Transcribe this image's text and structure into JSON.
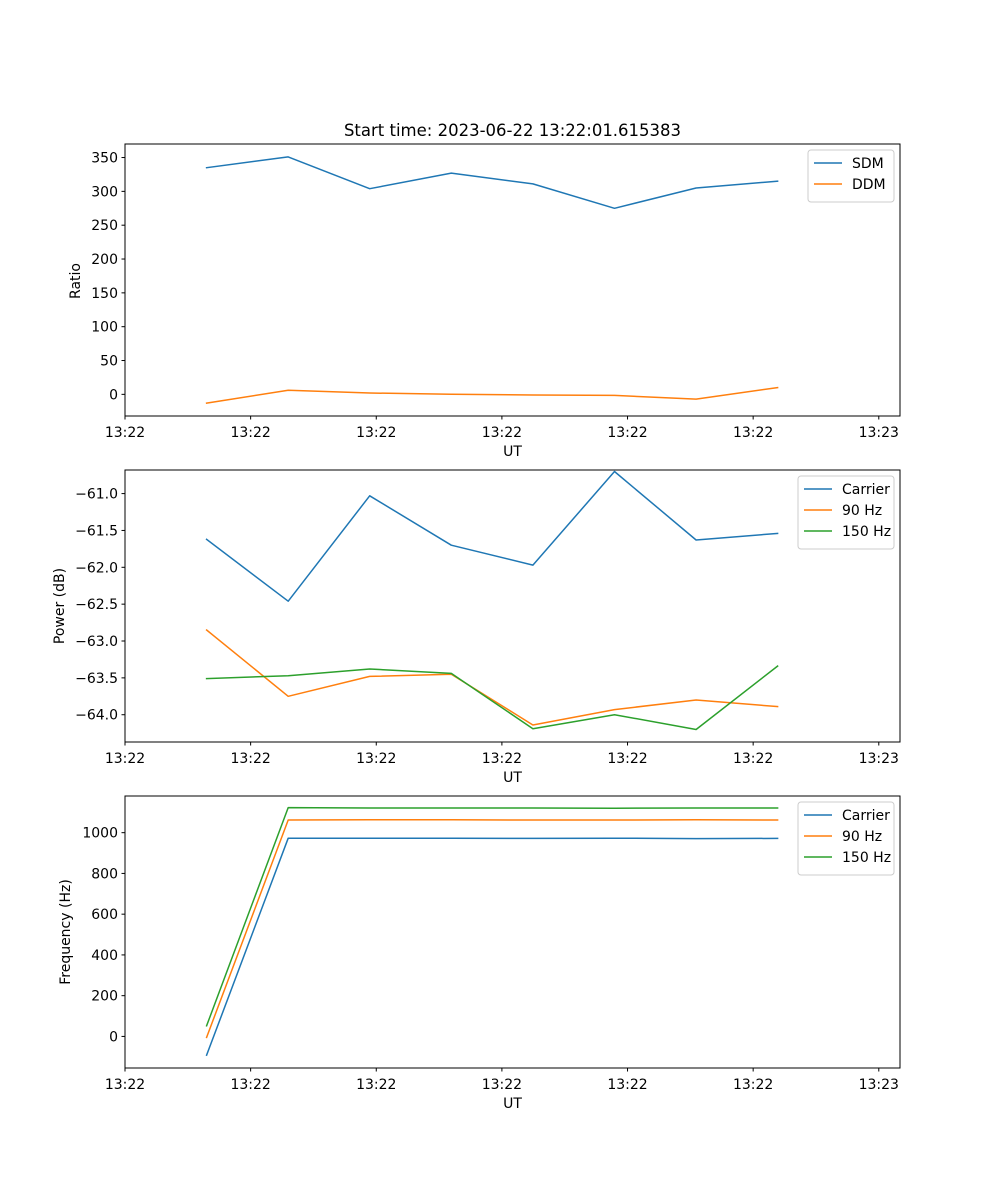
{
  "chart_data": [
    {
      "type": "line",
      "title": "Start time: 2023-06-22 13:22:01.615383",
      "xlabel": "UT",
      "ylabel": "Ratio",
      "x": [
        0.5,
        1,
        1.5,
        2,
        2.5,
        3,
        3.5,
        4
      ],
      "xlim": [
        0,
        4.75
      ],
      "xticks": [
        0,
        0.77,
        1.54,
        2.31,
        3.08,
        3.85,
        4.62
      ],
      "xtick_labels": [
        "13:22",
        "13:22",
        "13:22",
        "13:22",
        "13:22",
        "13:22",
        "13:23"
      ],
      "ylim": [
        -32,
        370
      ],
      "yticks": [
        0,
        50,
        100,
        150,
        200,
        250,
        300,
        350
      ],
      "ytick_labels": [
        "0",
        "50",
        "100",
        "150",
        "200",
        "250",
        "300",
        "350"
      ],
      "legend_position": "upper-right",
      "series": [
        {
          "name": "SDM",
          "color": "#1f77b4",
          "values": [
            335,
            351,
            304,
            327,
            311,
            275,
            305,
            315
          ]
        },
        {
          "name": "DDM",
          "color": "#ff7f0e",
          "values": [
            -13,
            6,
            2,
            0,
            -1,
            -1.5,
            -7,
            10
          ]
        }
      ]
    },
    {
      "type": "line",
      "xlabel": "UT",
      "ylabel": "Power (dB)",
      "x": [
        0.5,
        1,
        1.5,
        2,
        2.5,
        3,
        3.5,
        4
      ],
      "xlim": [
        0,
        4.75
      ],
      "xticks": [
        0,
        0.77,
        1.54,
        2.31,
        3.08,
        3.85,
        4.62
      ],
      "xtick_labels": [
        "13:22",
        "13:22",
        "13:22",
        "13:22",
        "13:22",
        "13:22",
        "13:23"
      ],
      "ylim": [
        -64.37,
        -60.68
      ],
      "yticks": [
        -64.0,
        -63.5,
        -63.0,
        -62.5,
        -62.0,
        -61.5,
        -61.0
      ],
      "ytick_labels": [
        "−64.0",
        "−63.5",
        "−63.0",
        "−62.5",
        "−62.0",
        "−61.5",
        "−61.0"
      ],
      "legend_position": "upper-right",
      "series": [
        {
          "name": "Carrier",
          "color": "#1f77b4",
          "values": [
            -61.62,
            -62.46,
            -61.03,
            -61.7,
            -61.97,
            -60.7,
            -61.63,
            -61.54
          ]
        },
        {
          "name": "90 Hz",
          "color": "#ff7f0e",
          "values": [
            -62.85,
            -63.75,
            -63.48,
            -63.45,
            -64.14,
            -63.93,
            -63.8,
            -63.89
          ]
        },
        {
          "name": "150 Hz",
          "color": "#2ca02c",
          "values": [
            -63.51,
            -63.47,
            -63.38,
            -63.44,
            -64.19,
            -64.0,
            -64.2,
            -63.34
          ]
        }
      ]
    },
    {
      "type": "line",
      "xlabel": "UT",
      "ylabel": "Frequency (Hz)",
      "x": [
        0.5,
        1,
        1.5,
        2,
        2.5,
        3,
        3.5,
        4
      ],
      "xlim": [
        0,
        4.75
      ],
      "xticks": [
        0,
        0.77,
        1.54,
        2.31,
        3.08,
        3.85,
        4.62
      ],
      "xtick_labels": [
        "13:22",
        "13:22",
        "13:22",
        "13:22",
        "13:22",
        "13:22",
        "13:23"
      ],
      "ylim": [
        -155,
        1180
      ],
      "yticks": [
        0,
        200,
        400,
        600,
        800,
        1000
      ],
      "ytick_labels": [
        "0",
        "200",
        "400",
        "600",
        "800",
        "1000"
      ],
      "legend_position": "upper-right",
      "series": [
        {
          "name": "Carrier",
          "color": "#1f77b4",
          "values": [
            -92,
            973,
            973,
            973,
            972,
            973,
            971,
            972
          ]
        },
        {
          "name": "90 Hz",
          "color": "#ff7f0e",
          "values": [
            -5,
            1062,
            1063,
            1063,
            1062,
            1062,
            1063,
            1062
          ]
        },
        {
          "name": "150 Hz",
          "color": "#2ca02c",
          "values": [
            52,
            1123,
            1121,
            1121,
            1121,
            1120,
            1121,
            1121
          ]
        }
      ]
    }
  ]
}
